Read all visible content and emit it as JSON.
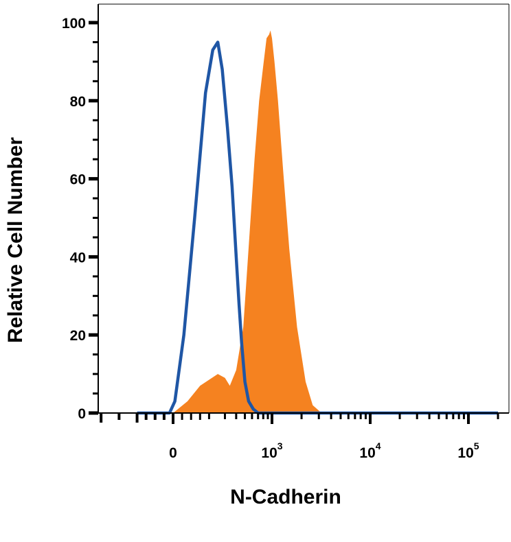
{
  "chart_data": {
    "type": "area",
    "title": "",
    "xlabel": "N-Cadherin",
    "ylabel": "Relative Cell Number",
    "x_scale": "biexponential",
    "ylim": [
      0,
      100
    ],
    "y_ticks": [
      0,
      20,
      40,
      60,
      80,
      100
    ],
    "x_ticks": [
      {
        "value": 0,
        "base": "0",
        "exp": ""
      },
      {
        "value": 1000,
        "base": "10",
        "exp": "3"
      },
      {
        "value": 10000,
        "base": "10",
        "exp": "4"
      },
      {
        "value": 100000,
        "base": "10",
        "exp": "5"
      }
    ],
    "grid": false,
    "legend": "none",
    "series": [
      {
        "color": "#F58220",
        "style": "filled",
        "x": [
          -60,
          0,
          80,
          150,
          250,
          300,
          340,
          400,
          480,
          560,
          640,
          720,
          800,
          870,
          930,
          960,
          1000,
          1060,
          1150,
          1300,
          1500,
          1800,
          2200,
          2600,
          3200,
          5000,
          200000
        ],
        "y": [
          0,
          0,
          3,
          7,
          10,
          9,
          7,
          11,
          22,
          45,
          65,
          80,
          89,
          96,
          97,
          98,
          96,
          90,
          80,
          62,
          42,
          22,
          8,
          2,
          0,
          0,
          0
        ]
      },
      {
        "color": "#1F56A5",
        "style": "line",
        "x": [
          -200,
          -20,
          10,
          60,
          120,
          180,
          220,
          250,
          280,
          320,
          360,
          400,
          430,
          460,
          500,
          550,
          620,
          700,
          900,
          200000
        ],
        "y": [
          0,
          0,
          3,
          20,
          50,
          82,
          93,
          95,
          88,
          73,
          58,
          40,
          28,
          18,
          8,
          3,
          1,
          0,
          0,
          0
        ]
      }
    ]
  }
}
